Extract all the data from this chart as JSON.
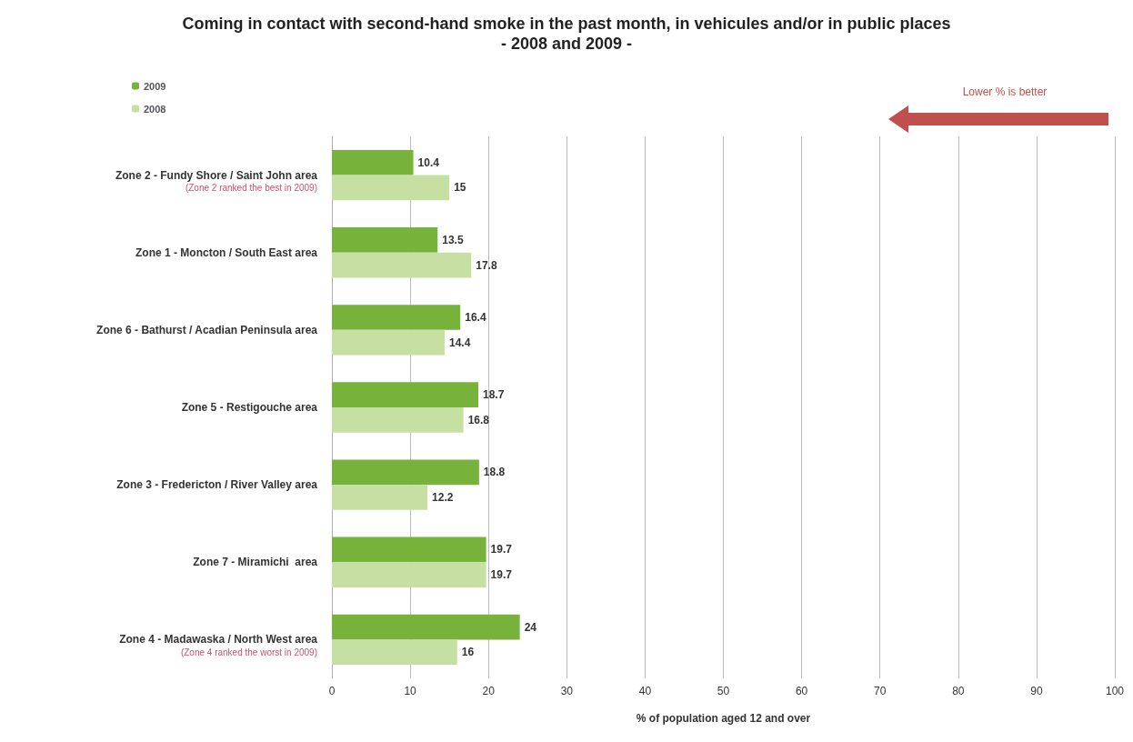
{
  "chart_data": {
    "type": "bar",
    "orientation": "horizontal",
    "title": "Coming in contact with second-hand smoke in the past month, in vehicules and/or in public places",
    "subtitle": "- 2008 and 2009 -",
    "xlabel": "% of population aged 12 and over",
    "categories": [
      "Zone 2 - Fundy Shore / Saint John area",
      "Zone 1 - Moncton / South East area",
      "Zone 6 - Bathurst / Acadian Peninsula area",
      "Zone 5 - Restigouche area",
      "Zone 3 - Fredericton / River Valley area",
      "Zone 7 - Miramichi  area",
      "Zone 4 - Madawaska / North West area"
    ],
    "series": [
      {
        "name": "2009",
        "color": "#77b23a",
        "values": [
          10.4,
          13.5,
          16.4,
          18.7,
          18.8,
          19.7,
          24
        ]
      },
      {
        "name": "2008",
        "color": "#c6e0a4",
        "values": [
          15,
          17.8,
          14.4,
          16.8,
          12.2,
          19.7,
          16
        ]
      }
    ],
    "xlim": [
      0,
      100
    ],
    "xticks": [
      0,
      10,
      20,
      30,
      40,
      50,
      60,
      70,
      80,
      90,
      100
    ],
    "grid": "x",
    "legend": "top left",
    "data_labels": true,
    "annotations": [
      "(Zone 2 ranked the best in 2009)",
      "(Zone 4 ranked the worst in 2009)",
      "Lower % is better"
    ]
  }
}
